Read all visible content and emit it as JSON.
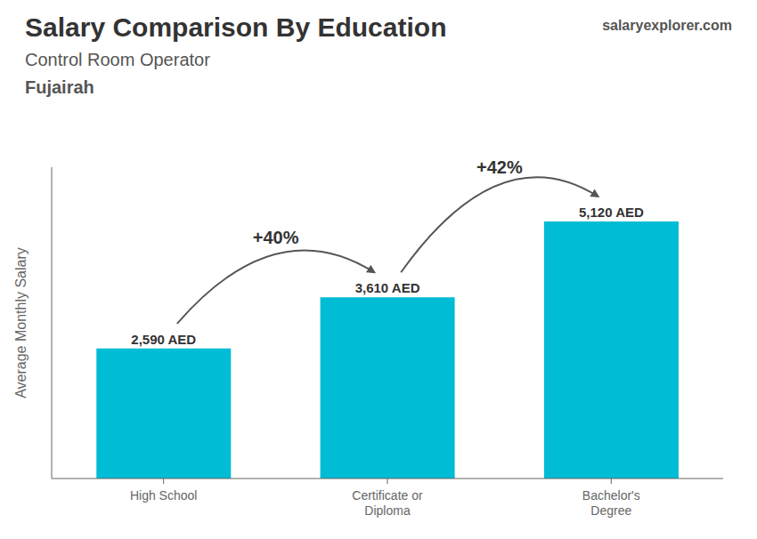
{
  "chart_data": {
    "type": "bar",
    "title": "Salary Comparison By Education",
    "subtitle": [
      "Control Room Operator",
      "Fujairah"
    ],
    "y_label": "Average Monthly Salary",
    "categories": [
      "High School",
      "Certificate or\nDiploma",
      "Bachelor's\nDegree"
    ],
    "values": [
      2590,
      3610,
      5120
    ],
    "value_labels": [
      "2,590 AED",
      "3,610 AED",
      "5,120 AED"
    ],
    "data_labels": true,
    "color": "#00bcd4",
    "ylim": [
      0,
      6200
    ],
    "grid": false,
    "tick_labels": "x",
    "annotations": [
      {
        "text": "salaryexplorer.com"
      },
      {
        "text": "+40%",
        "from": "High School",
        "to": "Certificate or\nDiploma"
      },
      {
        "text": "+42%",
        "from": "Certificate or\nDiploma",
        "to": "Bachelor's\nDegree"
      }
    ]
  }
}
